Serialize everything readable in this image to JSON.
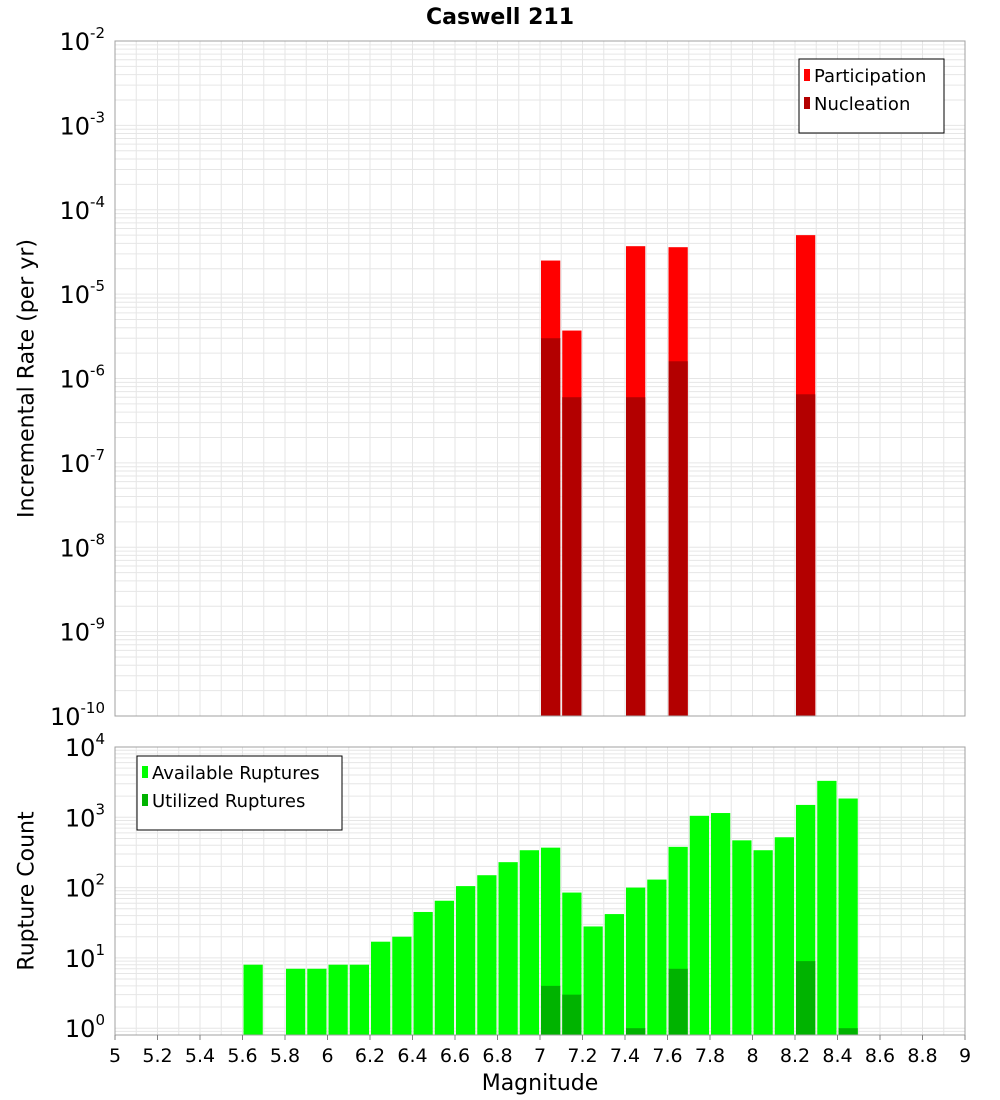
{
  "title": "Caswell 211",
  "colors": {
    "participation": "#ff0000",
    "nucleation": "#b30000",
    "available": "#00ff00",
    "utilized": "#00b300",
    "grid": "#e6e6e6",
    "border": "#a0a0a0"
  },
  "chart_data": [
    {
      "type": "bar",
      "panel": "top",
      "ylabel": "Incremental Rate (per yr)",
      "yscale": "log",
      "ylim": [
        1e-10,
        0.01
      ],
      "xlim": [
        5,
        9
      ],
      "yticks": [
        {
          "base": "10",
          "exp": "-10",
          "value": 1e-10
        },
        {
          "base": "10",
          "exp": "-9",
          "value": 1e-09
        },
        {
          "base": "10",
          "exp": "-8",
          "value": 1e-08
        },
        {
          "base": "10",
          "exp": "-7",
          "value": 1e-07
        },
        {
          "base": "10",
          "exp": "-6",
          "value": 1e-06
        },
        {
          "base": "10",
          "exp": "-5",
          "value": 1e-05
        },
        {
          "base": "10",
          "exp": "-4",
          "value": 0.0001
        },
        {
          "base": "10",
          "exp": "-3",
          "value": 0.001
        },
        {
          "base": "10",
          "exp": "-2",
          "value": 0.01
        }
      ],
      "legend_position": "top-right",
      "series": [
        {
          "name": "Participation",
          "color": "#ff0000",
          "points": [
            [
              7.05,
              2.5e-05
            ],
            [
              7.15,
              3.7e-06
            ],
            [
              7.45,
              3.7e-05
            ],
            [
              7.65,
              3.6e-05
            ],
            [
              8.25,
              5e-05
            ]
          ]
        },
        {
          "name": "Nucleation",
          "color": "#b30000",
          "points": [
            [
              7.05,
              3e-06
            ],
            [
              7.15,
              6e-07
            ],
            [
              7.45,
              6e-07
            ],
            [
              7.65,
              1.6e-06
            ],
            [
              8.25,
              6.5e-07
            ]
          ]
        }
      ]
    },
    {
      "type": "bar",
      "panel": "bottom",
      "ylabel": "Rupture Count",
      "xlabel": "Magnitude",
      "yscale": "log",
      "ylim": [
        0.8,
        10000
      ],
      "xlim": [
        5,
        9
      ],
      "yticks": [
        {
          "base": "10",
          "exp": "0",
          "value": 1
        },
        {
          "base": "10",
          "exp": "1",
          "value": 10
        },
        {
          "base": "10",
          "exp": "2",
          "value": 100
        },
        {
          "base": "10",
          "exp": "3",
          "value": 1000
        },
        {
          "base": "10",
          "exp": "4",
          "value": 10000
        }
      ],
      "xticks": [
        "5",
        "5.2",
        "5.4",
        "5.6",
        "5.8",
        "6",
        "6.2",
        "6.4",
        "6.6",
        "6.8",
        "7",
        "7.2",
        "7.4",
        "7.6",
        "7.8",
        "8",
        "8.2",
        "8.4",
        "8.6",
        "8.8",
        "9"
      ],
      "legend_position": "top-left",
      "series": [
        {
          "name": "Available Ruptures",
          "color": "#00ff00",
          "points": [
            [
              5.65,
              8
            ],
            [
              5.85,
              7
            ],
            [
              5.95,
              7
            ],
            [
              6.05,
              8
            ],
            [
              6.15,
              8
            ],
            [
              6.25,
              17
            ],
            [
              6.35,
              20
            ],
            [
              6.45,
              45
            ],
            [
              6.55,
              65
            ],
            [
              6.65,
              105
            ],
            [
              6.75,
              150
            ],
            [
              6.85,
              230
            ],
            [
              6.95,
              340
            ],
            [
              7.05,
              370
            ],
            [
              7.15,
              85
            ],
            [
              7.25,
              28
            ],
            [
              7.35,
              42
            ],
            [
              7.45,
              100
            ],
            [
              7.55,
              130
            ],
            [
              7.65,
              380
            ],
            [
              7.75,
              1050
            ],
            [
              7.85,
              1150
            ],
            [
              7.95,
              470
            ],
            [
              8.05,
              340
            ],
            [
              8.15,
              520
            ],
            [
              8.25,
              1500
            ],
            [
              8.35,
              3300
            ],
            [
              8.45,
              1850
            ]
          ]
        },
        {
          "name": "Utilized Ruptures",
          "color": "#00b300",
          "points": [
            [
              7.05,
              4
            ],
            [
              7.15,
              3
            ],
            [
              7.45,
              1
            ],
            [
              7.65,
              7
            ],
            [
              8.25,
              9
            ],
            [
              8.45,
              1
            ]
          ]
        }
      ]
    }
  ]
}
